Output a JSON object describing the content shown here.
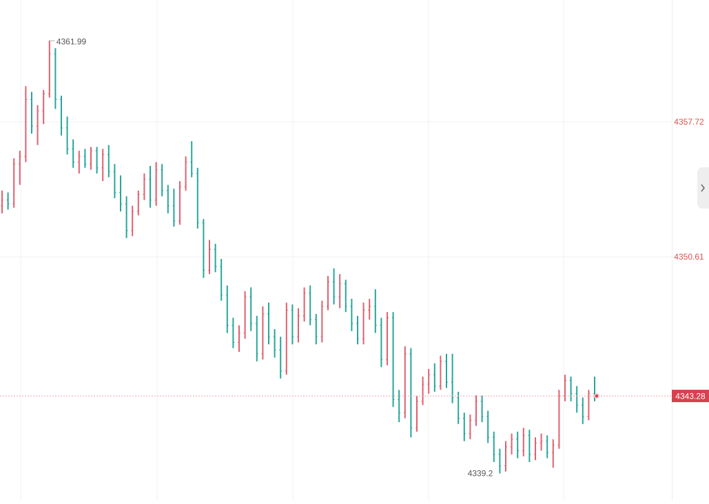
{
  "chart_data": {
    "type": "ohlc",
    "up_color": "#e0606e",
    "down_color": "#26a69a",
    "ylim": [
      4337.77,
      4364.14
    ],
    "yticks": [
      4350.61,
      4357.72
    ],
    "grid": true,
    "open": [
      4353.3,
      4353.6,
      4353.4,
      4355.5,
      4355.9,
      4358.9,
      4357.5,
      4358.3,
      4359.2,
      4361.3,
      4358.9,
      4357.4,
      4356.3,
      4355.6,
      4355.9,
      4355.5,
      4356.2,
      4355.3,
      4356.0,
      4355.1,
      4354.0,
      4353.4,
      4352.0,
      4353.0,
      4353.9,
      4354.7,
      4353.6,
      4355.2,
      4354.1,
      4353.3,
      4352.5,
      4354.3,
      4355.6,
      4355.0,
      4352.4,
      4349.9,
      4351.0,
      4350.1,
      4348.6,
      4347.0,
      4346.1,
      4346.6,
      4348.5,
      4347.1,
      4345.5,
      4347.6,
      4346.4,
      4345.7,
      4344.6,
      4347.8,
      4346.4,
      4347.5,
      4348.7,
      4347.3,
      4346.4,
      4348.0,
      4349.3,
      4348.5,
      4349.2,
      4348.0,
      4347.1,
      4346.3,
      4347.8,
      4348.0,
      4347.0,
      4345.2,
      4347.4,
      4343.1,
      4342.4,
      4345.5,
      4341.6,
      4343.0,
      4343.9,
      4344.4,
      4343.8,
      4345.1,
      4344.0,
      4343.2,
      4342.1,
      4341.3,
      4342.0,
      4343.0,
      4342.2,
      4341.1,
      4340.2,
      4339.6,
      4340.6,
      4341.0,
      4340.4,
      4341.2,
      4340.2,
      4340.8,
      4340.9,
      4340.3,
      4340.7,
      4343.3,
      4344.1,
      4343.4,
      4342.8,
      4342.2,
      4343.4
    ],
    "high": [
      4354.1,
      4354.0,
      4355.8,
      4356.2,
      4359.6,
      4359.3,
      4358.6,
      4359.4,
      4361.99,
      4361.6,
      4359.1,
      4358.0,
      4356.8,
      4356.2,
      4356.3,
      4356.4,
      4356.4,
      4356.3,
      4356.5,
      4355.5,
      4354.9,
      4353.8,
      4353.3,
      4354.1,
      4355.0,
      4355.4,
      4355.6,
      4355.5,
      4354.4,
      4354.2,
      4354.6,
      4355.9,
      4356.7,
      4355.3,
      4352.6,
      4351.5,
      4351.3,
      4350.5,
      4349.1,
      4347.4,
      4347.0,
      4348.8,
      4349.0,
      4347.5,
      4348.0,
      4348.2,
      4346.8,
      4346.4,
      4348.2,
      4348.1,
      4347.9,
      4349.0,
      4349.1,
      4347.6,
      4348.3,
      4349.6,
      4350.0,
      4349.7,
      4349.4,
      4348.4,
      4347.5,
      4348.2,
      4348.4,
      4348.9,
      4347.4,
      4347.7,
      4347.7,
      4343.6,
      4345.9,
      4345.8,
      4343.3,
      4344.3,
      4344.7,
      4345.0,
      4345.4,
      4345.5,
      4345.5,
      4343.5,
      4342.4,
      4342.3,
      4343.3,
      4343.3,
      4342.5,
      4341.4,
      4340.5,
      4340.9,
      4341.3,
      4341.4,
      4341.6,
      4341.5,
      4341.1,
      4341.3,
      4341.2,
      4341.0,
      4343.6,
      4344.4,
      4344.3,
      4343.8,
      4343.2,
      4343.6,
      4344.3
    ],
    "low": [
      4352.9,
      4353.1,
      4353.2,
      4354.4,
      4355.6,
      4357.1,
      4356.5,
      4357.6,
      4359.0,
      4358.4,
      4357.0,
      4356.0,
      4355.3,
      4355.0,
      4355.3,
      4355.2,
      4355.0,
      4354.6,
      4354.8,
      4353.7,
      4353.0,
      4351.6,
      4351.7,
      4352.8,
      4353.6,
      4353.2,
      4353.3,
      4353.8,
      4352.9,
      4352.2,
      4352.3,
      4354.1,
      4354.8,
      4352.1,
      4349.5,
      4349.7,
      4349.8,
      4348.3,
      4346.6,
      4345.8,
      4345.6,
      4346.3,
      4346.7,
      4345.1,
      4345.2,
      4346.0,
      4345.3,
      4344.2,
      4344.4,
      4346.0,
      4346.1,
      4347.2,
      4347.0,
      4346.0,
      4346.1,
      4347.8,
      4348.1,
      4347.9,
      4347.7,
      4346.7,
      4346.0,
      4346.0,
      4347.3,
      4346.6,
      4344.8,
      4344.9,
      4342.7,
      4341.9,
      4342.1,
      4341.1,
      4341.4,
      4342.8,
      4343.4,
      4343.5,
      4343.6,
      4343.7,
      4342.9,
      4341.8,
      4340.9,
      4341.0,
      4341.7,
      4341.9,
      4340.8,
      4339.8,
      4339.2,
      4339.3,
      4340.2,
      4340.0,
      4340.1,
      4339.8,
      4339.9,
      4340.4,
      4340.0,
      4339.5,
      4340.5,
      4343.0,
      4343.0,
      4342.4,
      4341.8,
      4342.0,
      4343.0
    ],
    "close": [
      4353.6,
      4353.4,
      4355.5,
      4355.9,
      4358.9,
      4357.5,
      4358.3,
      4359.2,
      4361.3,
      4358.9,
      4357.4,
      4356.3,
      4355.6,
      4355.9,
      4355.5,
      4356.2,
      4355.3,
      4356.0,
      4355.1,
      4354.0,
      4353.4,
      4352.0,
      4353.0,
      4353.9,
      4354.7,
      4353.6,
      4355.2,
      4354.1,
      4353.3,
      4352.5,
      4354.3,
      4355.6,
      4355.0,
      4352.4,
      4349.9,
      4351.0,
      4350.1,
      4348.6,
      4347.0,
      4346.1,
      4346.6,
      4348.5,
      4347.1,
      4345.5,
      4347.6,
      4346.4,
      4345.7,
      4344.6,
      4347.8,
      4346.4,
      4347.5,
      4348.7,
      4347.3,
      4346.4,
      4348.0,
      4349.3,
      4348.5,
      4349.2,
      4348.0,
      4347.1,
      4346.3,
      4347.8,
      4348.0,
      4347.0,
      4345.2,
      4347.4,
      4343.1,
      4342.4,
      4345.5,
      4341.6,
      4343.0,
      4343.9,
      4344.4,
      4343.8,
      4345.1,
      4344.0,
      4343.2,
      4342.1,
      4341.3,
      4342.0,
      4343.0,
      4342.2,
      4341.1,
      4340.2,
      4339.6,
      4340.6,
      4341.0,
      4340.4,
      4341.2,
      4340.2,
      4340.8,
      4340.9,
      4340.3,
      4340.7,
      4343.3,
      4344.1,
      4343.4,
      4342.8,
      4342.2,
      4343.4,
      4343.28
    ],
    "high_label": 4361.99,
    "low_label": 4339.2,
    "last_price": 4343.28
  }
}
